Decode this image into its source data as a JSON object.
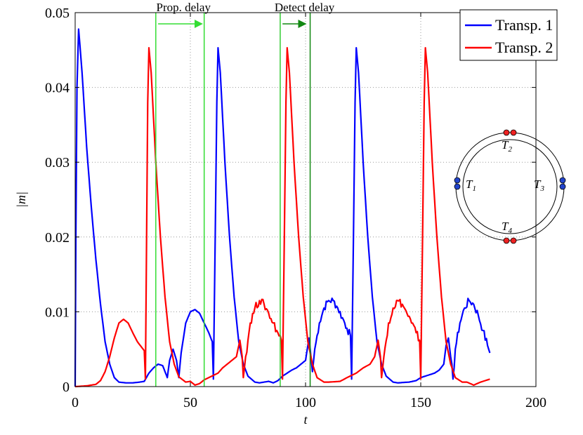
{
  "chart_data": {
    "type": "line",
    "title": "",
    "xlabel": "t",
    "ylabel": "|m|",
    "xlim": [
      0,
      200
    ],
    "ylim": [
      0,
      0.05
    ],
    "grid": true,
    "xticks": [
      0,
      50,
      100,
      150,
      200
    ],
    "xtick_labels": [
      "0",
      "50",
      "100",
      "150",
      "200"
    ],
    "yticks": [
      0,
      0.01,
      0.02,
      0.03,
      0.04,
      0.05
    ],
    "ytick_labels": [
      "0",
      "0.01",
      "0.02",
      "0.03",
      "0.04",
      "0.05"
    ],
    "legend_position": "top-right",
    "series": [
      {
        "name": "Transp. 1",
        "color": "#0000ff",
        "noisy_ranges": [
          [
            104,
            120
          ],
          [
            163,
            180
          ]
        ],
        "points": [
          [
            0,
            0
          ],
          [
            0.3,
            0.02
          ],
          [
            0.8,
            0.04
          ],
          [
            1.5,
            0.0478
          ],
          [
            3,
            0.042
          ],
          [
            5,
            0.032
          ],
          [
            7,
            0.024
          ],
          [
            9,
            0.017
          ],
          [
            11,
            0.011
          ],
          [
            13,
            0.006
          ],
          [
            15,
            0.003
          ],
          [
            17,
            0.0012
          ],
          [
            19,
            0.0006
          ],
          [
            22,
            0.0005
          ],
          [
            25,
            0.0005
          ],
          [
            28,
            0.0006
          ],
          [
            30,
            0.0007
          ],
          [
            32,
            0.0018
          ],
          [
            34,
            0.0025
          ],
          [
            36,
            0.003
          ],
          [
            38,
            0.0028
          ],
          [
            40,
            0.0012
          ],
          [
            41,
            0.0035
          ],
          [
            42.5,
            0.005
          ],
          [
            44,
            0.0035
          ],
          [
            45,
            0.0012
          ],
          [
            46,
            0.0045
          ],
          [
            48,
            0.0085
          ],
          [
            50,
            0.01
          ],
          [
            52,
            0.0103
          ],
          [
            54,
            0.0098
          ],
          [
            56,
            0.0085
          ],
          [
            58,
            0.0072
          ],
          [
            59.5,
            0.006
          ],
          [
            60,
            0.001
          ],
          [
            60.8,
            0.02
          ],
          [
            61.5,
            0.038
          ],
          [
            62,
            0.0453
          ],
          [
            63,
            0.042
          ],
          [
            65,
            0.03
          ],
          [
            67,
            0.02
          ],
          [
            69,
            0.012
          ],
          [
            71,
            0.006
          ],
          [
            73,
            0.003
          ],
          [
            75,
            0.0014
          ],
          [
            78,
            0.0006
          ],
          [
            80,
            0.0005
          ],
          [
            82,
            0.0006
          ],
          [
            84,
            0.0007
          ],
          [
            86,
            0.0005
          ],
          [
            88,
            0.0008
          ],
          [
            90,
            0.0014
          ],
          [
            92,
            0.0018
          ],
          [
            94,
            0.0022
          ],
          [
            96,
            0.0025
          ],
          [
            98,
            0.003
          ],
          [
            100,
            0.0035
          ],
          [
            101,
            0.0055
          ],
          [
            101.5,
            0.0065
          ],
          [
            102,
            0.005
          ],
          [
            103,
            0.002
          ],
          [
            104,
            0.005
          ],
          [
            106,
            0.0085
          ],
          [
            108,
            0.0105
          ],
          [
            110,
            0.0115
          ],
          [
            112,
            0.0115
          ],
          [
            114,
            0.0105
          ],
          [
            116,
            0.0092
          ],
          [
            118,
            0.0078
          ],
          [
            119.5,
            0.0068
          ],
          [
            120,
            0.001
          ],
          [
            120.8,
            0.02
          ],
          [
            121.5,
            0.038
          ],
          [
            122,
            0.0453
          ],
          [
            123,
            0.042
          ],
          [
            125,
            0.03
          ],
          [
            127,
            0.02
          ],
          [
            129,
            0.012
          ],
          [
            131,
            0.006
          ],
          [
            133,
            0.003
          ],
          [
            135,
            0.0014
          ],
          [
            138,
            0.0006
          ],
          [
            140,
            0.0005
          ],
          [
            145,
            0.0006
          ],
          [
            148,
            0.0008
          ],
          [
            150,
            0.0012
          ],
          [
            153,
            0.0015
          ],
          [
            156,
            0.0018
          ],
          [
            158,
            0.0022
          ],
          [
            160,
            0.003
          ],
          [
            161,
            0.0055
          ],
          [
            162,
            0.0065
          ],
          [
            163,
            0.004
          ],
          [
            164,
            0.001
          ],
          [
            165,
            0.005
          ],
          [
            167,
            0.0085
          ],
          [
            169,
            0.0105
          ],
          [
            171,
            0.0115
          ],
          [
            173,
            0.011
          ],
          [
            175,
            0.0095
          ],
          [
            177,
            0.0075
          ],
          [
            179,
            0.0055
          ],
          [
            180,
            0.0045
          ]
        ]
      },
      {
        "name": "Transp. 2",
        "color": "#ff0000",
        "noisy_ranges": [
          [
            74,
            90
          ],
          [
            134,
            150
          ]
        ],
        "points": [
          [
            0,
            0
          ],
          [
            5,
            0.0001
          ],
          [
            9,
            0.0003
          ],
          [
            11,
            0.0008
          ],
          [
            13,
            0.002
          ],
          [
            15,
            0.004
          ],
          [
            17,
            0.0065
          ],
          [
            19,
            0.0085
          ],
          [
            21,
            0.009
          ],
          [
            23,
            0.0085
          ],
          [
            25,
            0.0072
          ],
          [
            27,
            0.006
          ],
          [
            29,
            0.0052
          ],
          [
            30,
            0.0048
          ],
          [
            30.5,
            0.001
          ],
          [
            31,
            0.02
          ],
          [
            31.5,
            0.038
          ],
          [
            32,
            0.0453
          ],
          [
            33,
            0.042
          ],
          [
            35,
            0.03
          ],
          [
            37,
            0.02
          ],
          [
            39,
            0.012
          ],
          [
            41,
            0.006
          ],
          [
            43,
            0.003
          ],
          [
            45,
            0.0013
          ],
          [
            48,
            0.0006
          ],
          [
            50,
            0.0007
          ],
          [
            52,
            0.0002
          ],
          [
            54,
            0.0004
          ],
          [
            56,
            0.0009
          ],
          [
            58,
            0.0012
          ],
          [
            60,
            0.0015
          ],
          [
            62,
            0.0018
          ],
          [
            64,
            0.0025
          ],
          [
            66,
            0.003
          ],
          [
            68,
            0.0035
          ],
          [
            70,
            0.004
          ],
          [
            71.5,
            0.0062
          ],
          [
            72.5,
            0.004
          ],
          [
            73,
            0.0012
          ],
          [
            74,
            0.004
          ],
          [
            76,
            0.0085
          ],
          [
            78,
            0.0105
          ],
          [
            80,
            0.0115
          ],
          [
            82,
            0.011
          ],
          [
            84,
            0.0098
          ],
          [
            86,
            0.0085
          ],
          [
            88,
            0.0072
          ],
          [
            89.5,
            0.0062
          ],
          [
            90,
            0.001
          ],
          [
            90.8,
            0.02
          ],
          [
            91.5,
            0.038
          ],
          [
            92,
            0.0453
          ],
          [
            93,
            0.042
          ],
          [
            95,
            0.03
          ],
          [
            97,
            0.02
          ],
          [
            99,
            0.012
          ],
          [
            101,
            0.006
          ],
          [
            103,
            0.003
          ],
          [
            105,
            0.0012
          ],
          [
            108,
            0.0006
          ],
          [
            110,
            0.0006
          ],
          [
            115,
            0.0007
          ],
          [
            118,
            0.0012
          ],
          [
            120,
            0.0015
          ],
          [
            122,
            0.0018
          ],
          [
            125,
            0.0025
          ],
          [
            128,
            0.003
          ],
          [
            130,
            0.004
          ],
          [
            131.5,
            0.0062
          ],
          [
            132.5,
            0.004
          ],
          [
            133,
            0.0012
          ],
          [
            134,
            0.004
          ],
          [
            136,
            0.0085
          ],
          [
            138,
            0.0105
          ],
          [
            140,
            0.0115
          ],
          [
            142,
            0.011
          ],
          [
            144,
            0.0098
          ],
          [
            146,
            0.0085
          ],
          [
            148,
            0.0072
          ],
          [
            149.5,
            0.0062
          ],
          [
            150,
            0.001
          ],
          [
            150.8,
            0.02
          ],
          [
            151.5,
            0.038
          ],
          [
            152,
            0.0453
          ],
          [
            153,
            0.042
          ],
          [
            155,
            0.03
          ],
          [
            157,
            0.02
          ],
          [
            159,
            0.012
          ],
          [
            161,
            0.006
          ],
          [
            163,
            0.003
          ],
          [
            165,
            0.0012
          ],
          [
            168,
            0.0006
          ],
          [
            170,
            0.0006
          ],
          [
            173,
            0.0002
          ],
          [
            176,
            0.0006
          ],
          [
            178,
            0.0008
          ],
          [
            180,
            0.001
          ]
        ]
      }
    ],
    "vertical_lines": [
      {
        "x": 35,
        "color": "#33dd33"
      },
      {
        "x": 56,
        "color": "#33dd33"
      },
      {
        "x": 89,
        "color": "#33cc33"
      },
      {
        "x": 102,
        "color": "#118811"
      }
    ],
    "annotations": [
      {
        "text": "Prop. delay",
        "arrow_from_x": 36,
        "arrow_to_x": 55,
        "y": 0.0485,
        "arrow_color": "#33dd33"
      },
      {
        "text": "Detect delay",
        "arrow_from_x": 90,
        "arrow_to_x": 100,
        "y": 0.0485,
        "arrow_color": "#118811"
      }
    ],
    "inset": {
      "labels": [
        {
          "base": "T",
          "sub": "1"
        },
        {
          "base": "T",
          "sub": "2"
        },
        {
          "base": "T",
          "sub": "3"
        },
        {
          "base": "T",
          "sub": "4"
        }
      ],
      "dot_colors": {
        "blue": "#2244cc",
        "red": "#ee2222"
      }
    }
  }
}
